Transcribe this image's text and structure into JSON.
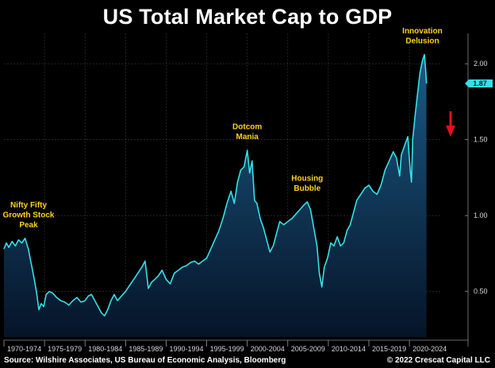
{
  "chart_data": {
    "type": "area",
    "title": "US Total Market Cap to GDP",
    "xlabel": "",
    "ylabel": "",
    "x_categories": [
      "1970-1974",
      "1975-1979",
      "1980-1984",
      "1985-1989",
      "1990-1994",
      "1995-1999",
      "2000-2004",
      "2005-2009",
      "2010-2014",
      "2015-2019",
      "2020-2024"
    ],
    "xlim": [
      1970,
      2024
    ],
    "ylim": [
      0.2,
      2.2
    ],
    "yticks": [
      0.5,
      1.0,
      1.5,
      2.0
    ],
    "ytick_labels": [
      "0.50",
      "1.00",
      "1.50",
      "2.00"
    ],
    "grid": true,
    "y_axis_position": "right",
    "colors": {
      "line": "#33e1e8",
      "fill_top": "#1b5a85",
      "fill_bottom": "#061428",
      "annotation": "#ffd21a",
      "arrow": "#e3111a",
      "value_badge": "#33e1e8",
      "grid": "#3a3a3a"
    },
    "series": [
      {
        "x": [
          1970.0,
          1970.3,
          1970.6,
          1971.0,
          1971.4,
          1971.8,
          1972.2,
          1972.6,
          1973.0,
          1973.3,
          1973.6,
          1974.0,
          1974.3,
          1974.6,
          1974.9,
          1975.2,
          1975.6,
          1976.0,
          1976.5,
          1977.0,
          1977.5,
          1978.0,
          1978.5,
          1979.0,
          1979.5,
          1980.0,
          1980.4,
          1980.8,
          1981.2,
          1981.6,
          1982.0,
          1982.4,
          1982.8,
          1983.2,
          1983.6,
          1984.0,
          1984.5,
          1985.0,
          1985.5,
          1986.0,
          1986.5,
          1987.0,
          1987.4,
          1987.8,
          1988.2,
          1988.6,
          1989.0,
          1989.5,
          1990.0,
          1990.5,
          1991.0,
          1991.5,
          1992.0,
          1992.5,
          1993.0,
          1993.5,
          1994.0,
          1994.5,
          1995.0,
          1995.5,
          1996.0,
          1996.5,
          1997.0,
          1997.5,
          1998.0,
          1998.4,
          1998.8,
          1999.2,
          1999.6,
          2000.0,
          2000.3,
          2000.6,
          2000.9,
          2001.2,
          2001.6,
          2002.0,
          2002.4,
          2002.8,
          2003.2,
          2003.6,
          2004.0,
          2004.5,
          2005.0,
          2005.5,
          2006.0,
          2006.5,
          2007.0,
          2007.4,
          2007.8,
          2008.2,
          2008.6,
          2008.9,
          2009.2,
          2009.5,
          2009.9,
          2010.3,
          2010.7,
          2011.1,
          2011.5,
          2011.9,
          2012.3,
          2012.7,
          2013.1,
          2013.5,
          2014.0,
          2014.5,
          2015.0,
          2015.5,
          2016.0,
          2016.5,
          2017.0,
          2017.5,
          2018.0,
          2018.4,
          2018.8,
          2019.0,
          2019.4,
          2019.8,
          2020.1,
          2020.25,
          2020.4,
          2020.7,
          2021.0,
          2021.3,
          2021.6,
          2021.85,
          2022.0,
          2022.1
        ],
        "y": [
          0.78,
          0.82,
          0.79,
          0.83,
          0.8,
          0.84,
          0.82,
          0.85,
          0.78,
          0.7,
          0.62,
          0.5,
          0.38,
          0.42,
          0.4,
          0.48,
          0.5,
          0.49,
          0.46,
          0.44,
          0.43,
          0.41,
          0.44,
          0.46,
          0.43,
          0.44,
          0.47,
          0.48,
          0.44,
          0.4,
          0.36,
          0.34,
          0.38,
          0.44,
          0.48,
          0.44,
          0.47,
          0.5,
          0.54,
          0.58,
          0.62,
          0.66,
          0.7,
          0.52,
          0.56,
          0.58,
          0.6,
          0.64,
          0.58,
          0.55,
          0.62,
          0.64,
          0.66,
          0.67,
          0.69,
          0.7,
          0.68,
          0.7,
          0.72,
          0.78,
          0.84,
          0.9,
          0.98,
          1.08,
          1.16,
          1.08,
          1.22,
          1.3,
          1.32,
          1.43,
          1.28,
          1.36,
          1.1,
          1.08,
          0.98,
          0.92,
          0.84,
          0.76,
          0.8,
          0.88,
          0.96,
          0.94,
          0.96,
          0.98,
          1.01,
          1.04,
          1.07,
          1.09,
          1.04,
          0.92,
          0.8,
          0.62,
          0.53,
          0.66,
          0.72,
          0.82,
          0.8,
          0.86,
          0.8,
          0.82,
          0.9,
          0.94,
          1.02,
          1.1,
          1.14,
          1.18,
          1.2,
          1.16,
          1.14,
          1.2,
          1.3,
          1.36,
          1.42,
          1.38,
          1.26,
          1.4,
          1.46,
          1.52,
          1.3,
          1.22,
          1.5,
          1.66,
          1.8,
          1.94,
          2.02,
          2.06,
          1.96,
          1.87
        ]
      }
    ],
    "last_value_label": "1.87",
    "annotations": [
      {
        "label": "Nifty Fifty Growth Stock Peak",
        "lines": [
          "Nifty Fifty",
          "Growth Stock",
          "Peak"
        ],
        "x": 1972.6,
        "y": 0.85
      },
      {
        "label": "Dotcom Mania",
        "lines": [
          "Dotcom",
          "Mania"
        ],
        "x": 2000.0,
        "y": 1.43
      },
      {
        "label": "Housing Bubble",
        "lines": [
          "Housing",
          "Bubble"
        ],
        "x": 2007.4,
        "y": 1.09
      },
      {
        "label": "Innovation Delusion",
        "lines": [
          "Innovation",
          "Delusion"
        ],
        "x": 2021.6,
        "y": 2.06
      }
    ]
  },
  "footer": {
    "source": "Source: Wilshire Associates, US Bureau of Economic Analysis, Bloomberg",
    "copyright": "© 2022 Crescat Capital LLC"
  }
}
